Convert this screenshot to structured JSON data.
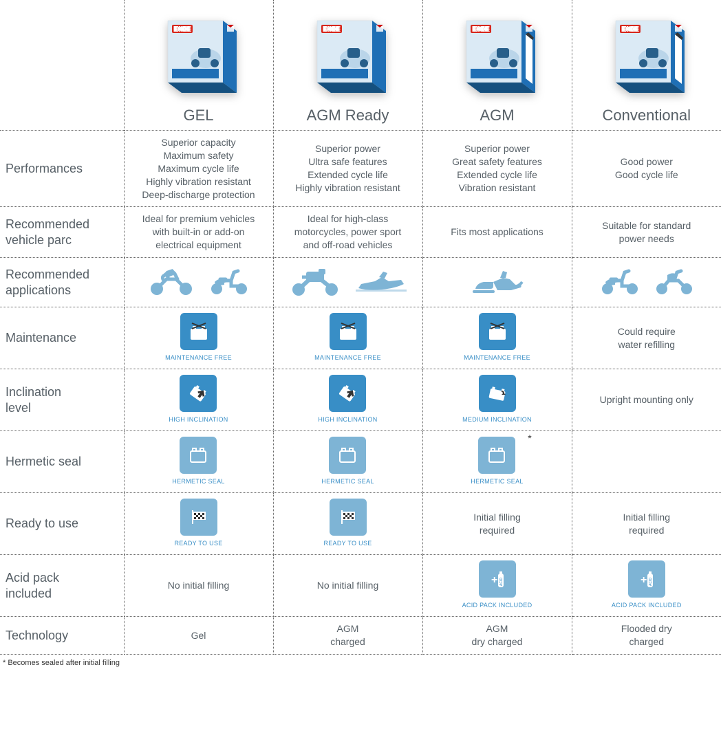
{
  "colors": {
    "text": "#576067",
    "tile_dark": "#388ec6",
    "tile_light": "#7eb4d5",
    "caption": "#388ec6",
    "vehicle_icon": "#7eb4d5",
    "box_blue": "#1f6fb5",
    "box_light": "#dbeaf5"
  },
  "columns": [
    {
      "key": "gel",
      "label": "GEL",
      "box_variant": "closed"
    },
    {
      "key": "agm_ready",
      "label": "AGM Ready",
      "box_variant": "closed"
    },
    {
      "key": "agm",
      "label": "AGM",
      "box_variant": "open"
    },
    {
      "key": "conventional",
      "label": "Conventional",
      "box_variant": "open"
    }
  ],
  "rows": {
    "performances": {
      "label": "Performances",
      "gel": "Superior capacity\nMaximum safety\nMaximum cycle life\nHighly vibration resistant\nDeep-discharge protection",
      "agm_ready": "Superior power\nUltra safe features\nExtended cycle life\nHighly vibration resistant",
      "agm": "Superior power\nGreat safety features\nExtended cycle life\nVibration resistant",
      "conventional": "Good power\nGood cycle life"
    },
    "vehicle_parc": {
      "label": "Recommended\nvehicle parc",
      "gel": "Ideal for premium vehicles\nwith built-in or add-on\nelectrical equipment",
      "agm_ready": "Ideal for high-class\nmotorcycles, power sport\nand off-road vehicles",
      "agm": "Fits most applications",
      "conventional": "Suitable for standard\npower needs"
    },
    "applications": {
      "label": "Recommended\napplications",
      "gel": [
        "motorcycle",
        "scooter"
      ],
      "agm_ready": [
        "touring",
        "jetski"
      ],
      "agm": [
        "snowmobile"
      ],
      "conventional": [
        "scooter2",
        "moped"
      ]
    },
    "maintenance": {
      "label": "Maintenance",
      "gel": {
        "type": "icon",
        "icon": "maintenance-free",
        "caption": "MAINTENANCE FREE",
        "tile": "dark"
      },
      "agm_ready": {
        "type": "icon",
        "icon": "maintenance-free",
        "caption": "MAINTENANCE FREE",
        "tile": "dark"
      },
      "agm": {
        "type": "icon",
        "icon": "maintenance-free",
        "caption": "MAINTENANCE FREE",
        "tile": "dark"
      },
      "conventional": {
        "type": "text",
        "text": "Could require\nwater refilling"
      }
    },
    "inclination": {
      "label": "Inclination\nlevel",
      "gel": {
        "type": "icon",
        "icon": "high-inclination",
        "caption": "HIGH INCLINATION",
        "tile": "dark"
      },
      "agm_ready": {
        "type": "icon",
        "icon": "high-inclination",
        "caption": "HIGH INCLINATION",
        "tile": "dark"
      },
      "agm": {
        "type": "icon",
        "icon": "medium-inclination",
        "caption": "MEDIUM INCLINATION",
        "tile": "dark"
      },
      "conventional": {
        "type": "text",
        "text": "Upright mounting only"
      }
    },
    "hermetic": {
      "label": "Hermetic seal",
      "gel": {
        "type": "icon",
        "icon": "hermetic-seal",
        "caption": "HERMETIC SEAL",
        "tile": "light"
      },
      "agm_ready": {
        "type": "icon",
        "icon": "hermetic-seal",
        "caption": "HERMETIC SEAL",
        "tile": "light"
      },
      "agm": {
        "type": "icon",
        "icon": "hermetic-seal",
        "caption": "HERMETIC SEAL",
        "tile": "light",
        "asterisk": true
      },
      "conventional": {
        "type": "empty"
      }
    },
    "ready": {
      "label": "Ready to use",
      "gel": {
        "type": "icon",
        "icon": "ready-to-use",
        "caption": "READY TO USE",
        "tile": "light"
      },
      "agm_ready": {
        "type": "icon",
        "icon": "ready-to-use",
        "caption": "READY TO USE",
        "tile": "light"
      },
      "agm": {
        "type": "text",
        "text": "Initial filling\nrequired"
      },
      "conventional": {
        "type": "text",
        "text": "Initial filling\nrequired"
      }
    },
    "acid_pack": {
      "label": "Acid pack\nincluded",
      "gel": {
        "type": "text",
        "text": "No initial filling"
      },
      "agm_ready": {
        "type": "text",
        "text": "No initial filling"
      },
      "agm": {
        "type": "icon",
        "icon": "acid-pack",
        "caption": "ACID PACK INCLUDED",
        "tile": "light"
      },
      "conventional": {
        "type": "icon",
        "icon": "acid-pack",
        "caption": "ACID PACK INCLUDED",
        "tile": "light"
      }
    },
    "technology": {
      "label": "Technology",
      "gel": "Gel",
      "agm_ready": "AGM\ncharged",
      "agm": "AGM\ndry charged",
      "conventional": "Flooded dry\ncharged"
    }
  },
  "footnote": "* Becomes sealed after initial filling"
}
